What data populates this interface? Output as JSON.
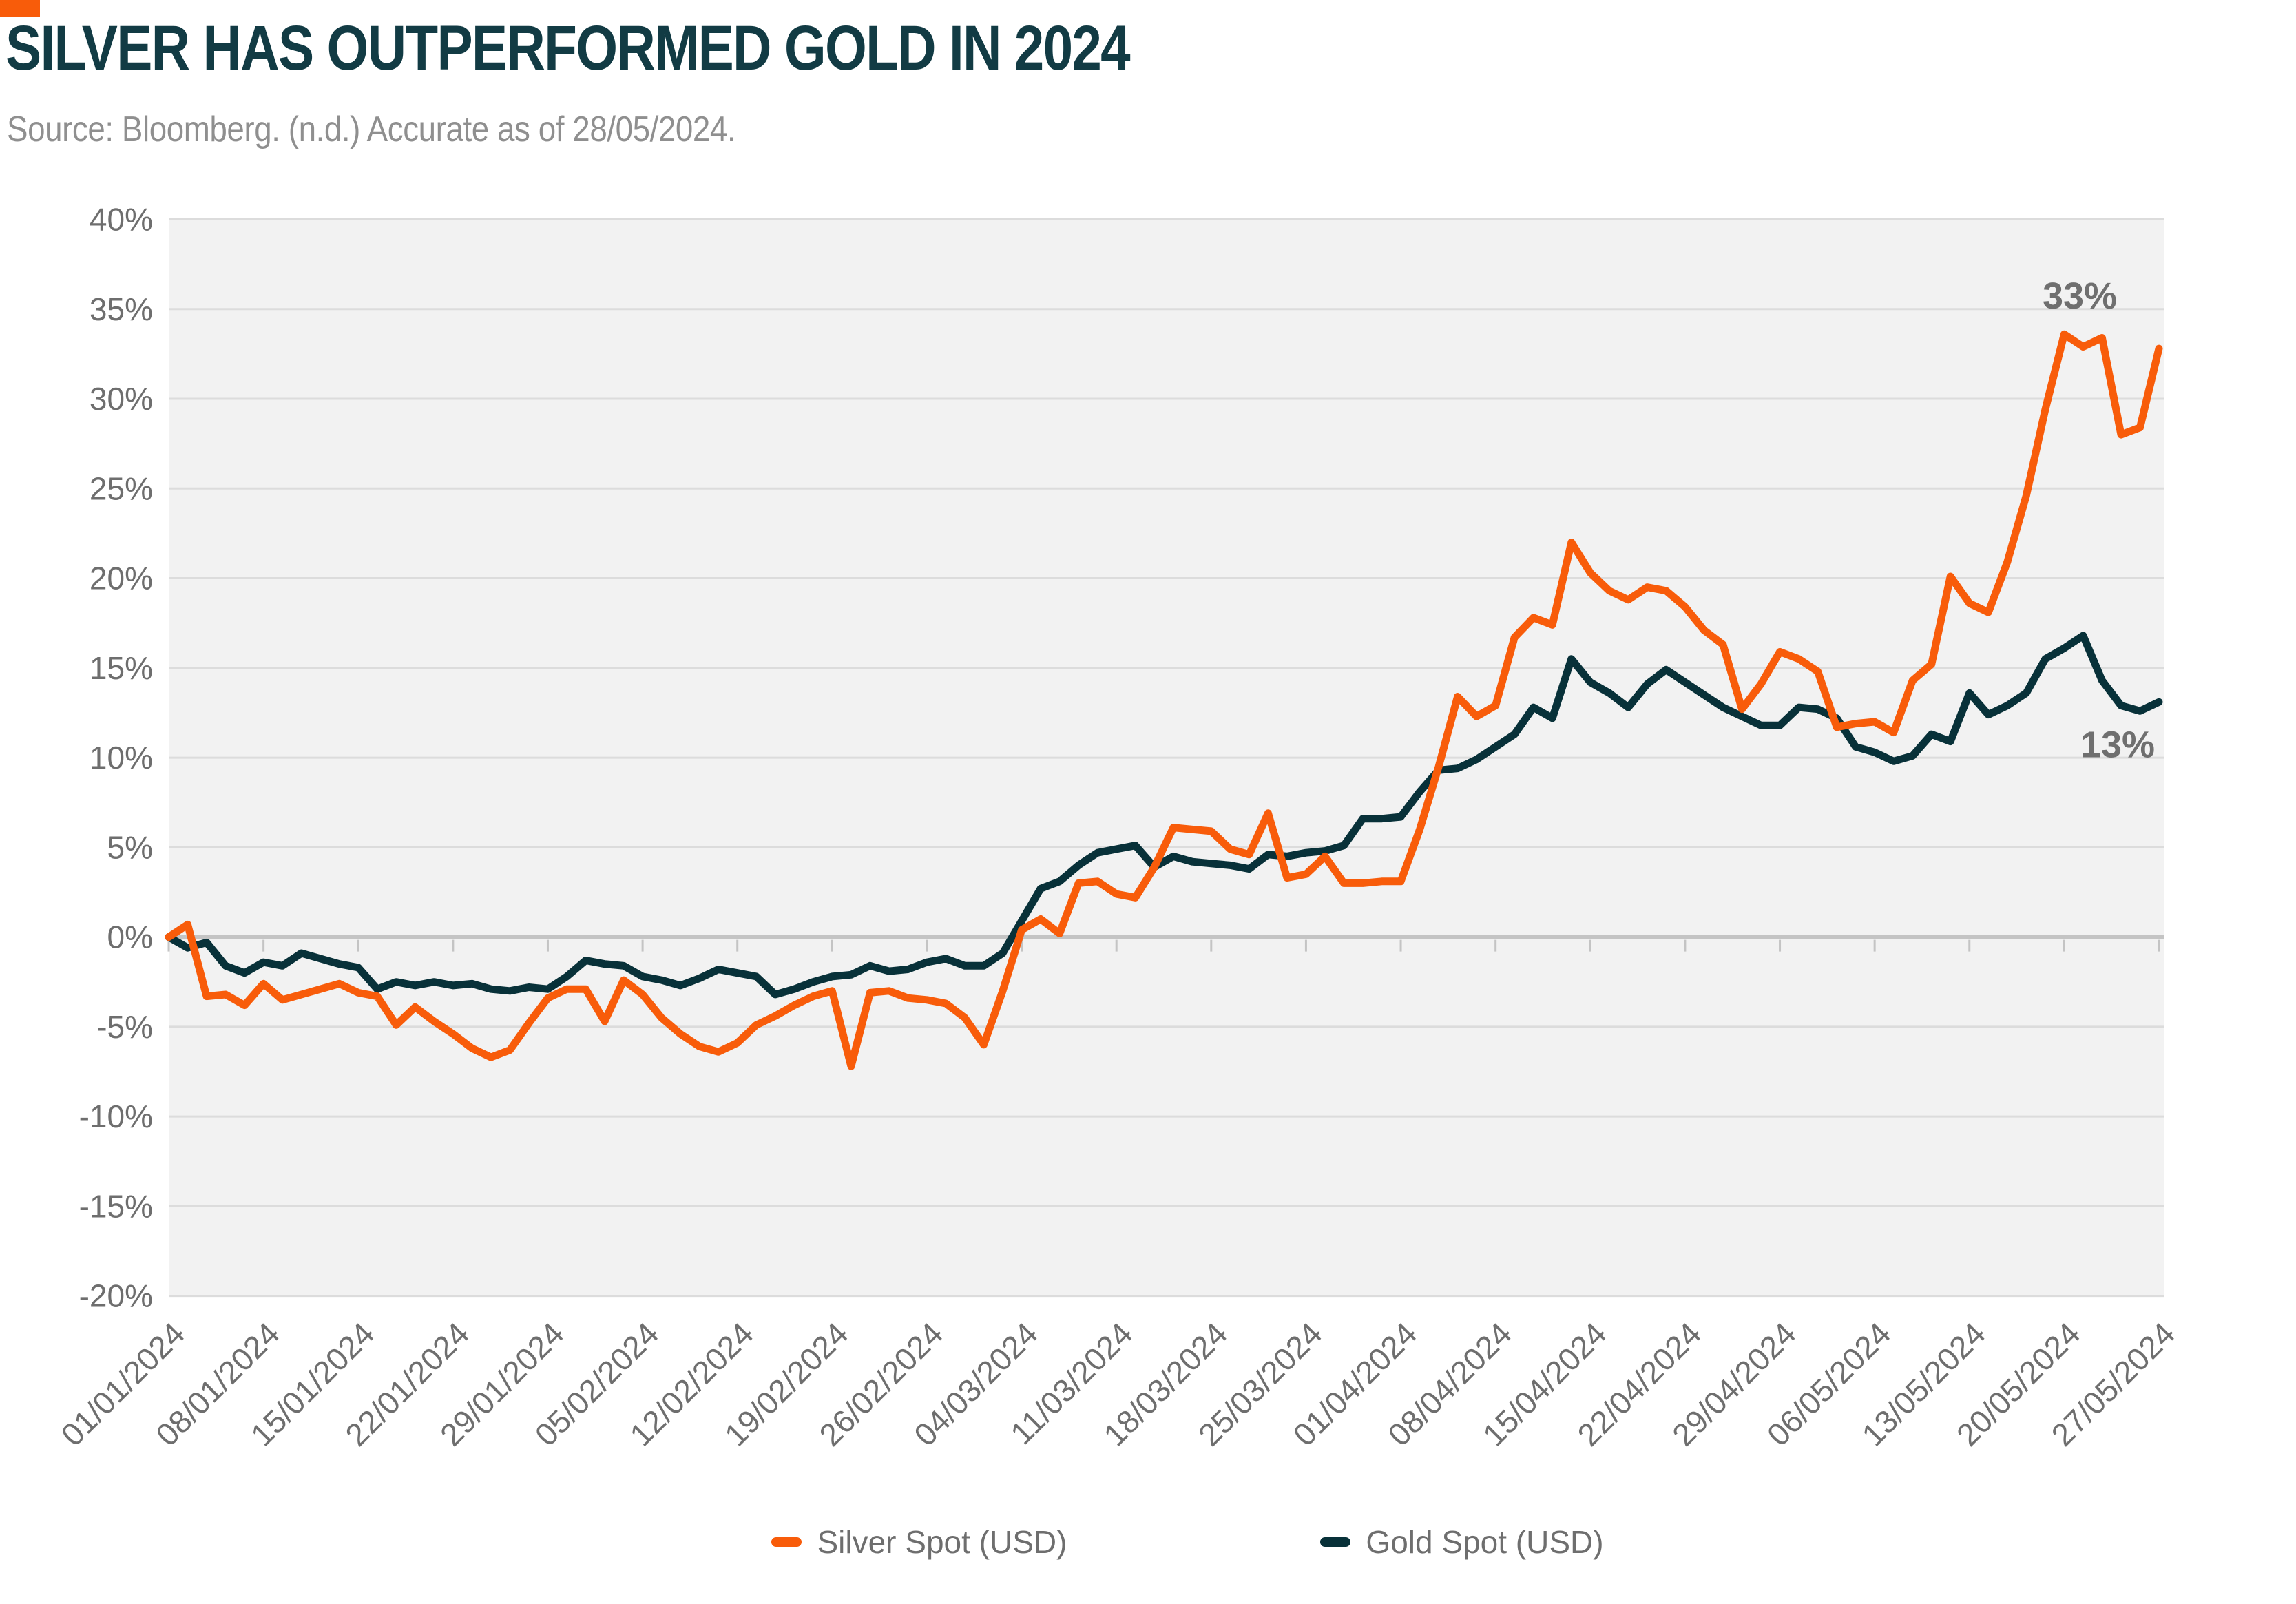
{
  "header": {
    "title": "SILVER HAS OUTPERFORMED GOLD IN 2024",
    "subtitle": "Source: Bloomberg. (n.d.) Accurate as of 28/05/2024."
  },
  "styles": {
    "accent": "#F85C0A",
    "title_color": "#123B44",
    "subtitle_color": "#8F8F8F",
    "plot_bg": "#F2F2F2",
    "gridline": "#DCDCDC",
    "zero_line": "#C4C4C4",
    "axis_label": "#6E6E6E",
    "annotation": "#6F6F6F",
    "legend_text": "#6E6E6E",
    "background": "#FFFFFF"
  },
  "chart_data": {
    "type": "line",
    "title": "SILVER HAS OUTPERFORMED GOLD IN 2024",
    "subtitle": "Source: Bloomberg. (n.d.) Accurate as of 28/05/2024.",
    "xlabel": "",
    "ylabel": "",
    "ylim": [
      -20,
      40
    ],
    "grid": true,
    "legend_position": "bottom",
    "tick_every": 5,
    "x_tick_labels": [
      "01/01/2024",
      "08/01/2024",
      "15/01/2024",
      "22/01/2024",
      "29/01/2024",
      "05/02/2024",
      "12/02/2024",
      "19/02/2024",
      "26/02/2024",
      "04/03/2024",
      "11/03/2024",
      "18/03/2024",
      "25/03/2024",
      "01/04/2024",
      "08/04/2024",
      "15/04/2024",
      "22/04/2024",
      "29/04/2024",
      "06/05/2024",
      "13/05/2024",
      "20/05/2024",
      "27/05/2024"
    ],
    "y_tick_values": [
      40,
      35,
      30,
      25,
      20,
      15,
      10,
      5,
      0,
      -5,
      -10,
      -15,
      -20
    ],
    "y_tick_labels": [
      "40%",
      "35%",
      "30%",
      "25%",
      "20%",
      "15%",
      "10%",
      "5%",
      "0%",
      "-5%",
      "-10%",
      "-15%",
      "-20%"
    ],
    "series": [
      {
        "name": "Silver Spot (USD)",
        "color": "#F85C0A",
        "end_label": "33%",
        "values": [
          0.0,
          0.7,
          -3.3,
          -3.2,
          -3.8,
          -2.6,
          -3.5,
          -3.2,
          -2.9,
          -2.6,
          -3.1,
          -3.3,
          -4.9,
          -3.9,
          -4.7,
          -5.4,
          -6.2,
          -6.7,
          -6.3,
          -4.8,
          -3.4,
          -2.9,
          -2.9,
          -4.7,
          -2.4,
          -3.2,
          -4.5,
          -5.4,
          -6.1,
          -6.4,
          -5.9,
          -4.9,
          -4.4,
          -3.8,
          -3.3,
          -3.0,
          -7.2,
          -3.1,
          -3.0,
          -3.4,
          -3.5,
          -3.7,
          -4.5,
          -6.0,
          -3.0,
          0.4,
          1.0,
          0.2,
          3.0,
          3.1,
          2.4,
          2.2,
          3.9,
          6.1,
          6.0,
          5.9,
          4.9,
          4.6,
          6.9,
          3.3,
          3.5,
          4.5,
          3.0,
          3.0,
          3.1,
          3.1,
          6.0,
          9.5,
          13.4,
          12.3,
          12.9,
          16.7,
          17.8,
          17.4,
          22.0,
          20.3,
          19.3,
          18.8,
          19.5,
          19.3,
          18.4,
          17.1,
          16.3,
          12.7,
          14.1,
          15.9,
          15.5,
          14.8,
          11.7,
          11.9,
          12.0,
          11.4,
          14.3,
          15.2,
          20.1,
          18.6,
          18.1,
          20.9,
          24.6,
          29.4,
          33.6,
          32.9,
          33.4,
          28.0,
          28.4,
          32.8
        ]
      },
      {
        "name": "Gold Spot (USD)",
        "color": "#083139",
        "end_label": "13%",
        "values": [
          0.0,
          -0.6,
          -0.3,
          -1.6,
          -2.0,
          -1.4,
          -1.6,
          -0.9,
          -1.2,
          -1.5,
          -1.7,
          -2.9,
          -2.5,
          -2.7,
          -2.5,
          -2.7,
          -2.6,
          -2.9,
          -3.0,
          -2.8,
          -2.9,
          -2.2,
          -1.3,
          -1.5,
          -1.6,
          -2.2,
          -2.4,
          -2.7,
          -2.3,
          -1.8,
          -2.0,
          -2.2,
          -3.2,
          -2.9,
          -2.5,
          -2.2,
          -2.1,
          -1.6,
          -1.9,
          -1.8,
          -1.4,
          -1.2,
          -1.6,
          -1.6,
          -0.9,
          0.9,
          2.7,
          3.1,
          4.0,
          4.7,
          4.9,
          5.1,
          3.9,
          4.5,
          4.2,
          4.1,
          4.0,
          3.8,
          4.6,
          4.5,
          4.7,
          4.8,
          5.1,
          6.6,
          6.6,
          6.7,
          8.1,
          9.3,
          9.4,
          9.9,
          10.6,
          11.3,
          12.8,
          12.2,
          15.5,
          14.2,
          13.6,
          12.8,
          14.1,
          14.9,
          14.2,
          13.5,
          12.8,
          12.3,
          11.8,
          11.8,
          12.8,
          12.7,
          12.2,
          10.6,
          10.3,
          9.8,
          10.1,
          11.3,
          10.9,
          13.6,
          12.4,
          12.9,
          13.6,
          15.5,
          16.1,
          16.8,
          14.3,
          12.9,
          12.6,
          13.1
        ]
      }
    ]
  },
  "legend": {
    "silver_label": "Silver Spot (USD)",
    "gold_label": "Gold Spot (USD)"
  }
}
